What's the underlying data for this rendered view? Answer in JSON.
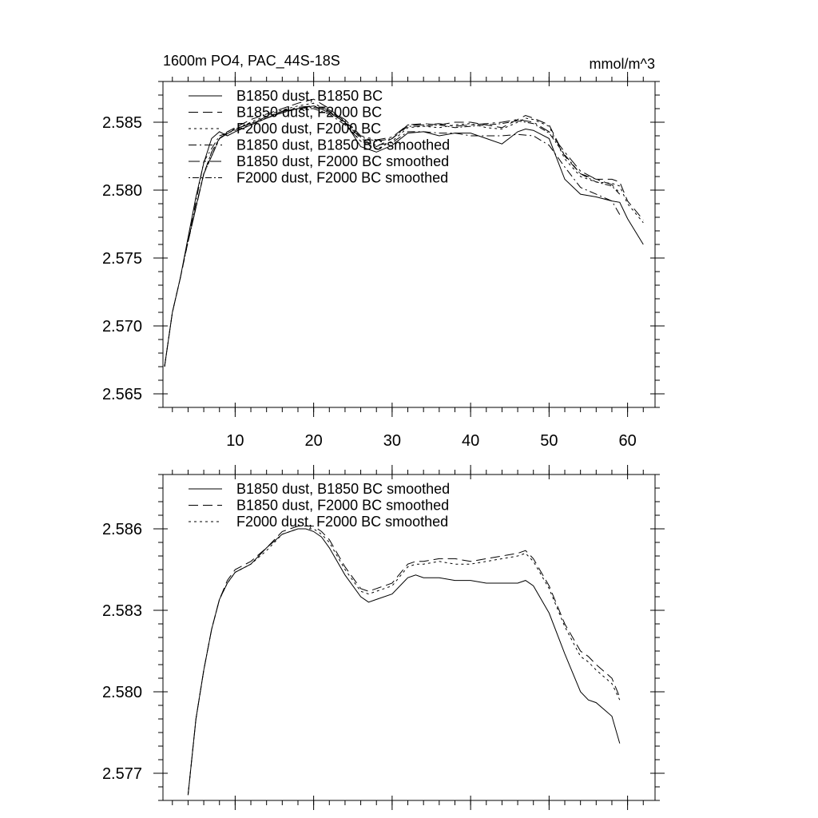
{
  "figure": {
    "title": "1600m PO4, PAC_44S-18S",
    "units": "mmol/m^3"
  },
  "chart_data": [
    {
      "type": "line",
      "title": "1600m PO4, PAC_44S-18S",
      "units_label": "mmol/m^3",
      "xlabel": "",
      "ylabel": "",
      "xlim": [
        0.8,
        63.5
      ],
      "ylim": [
        2.564,
        2.588
      ],
      "xticks": [
        10,
        20,
        30,
        40,
        50,
        60
      ],
      "yticks": [
        2.565,
        2.57,
        2.575,
        2.58,
        2.585
      ],
      "ytick_labels": [
        "2.565",
        "2.570",
        "2.575",
        "2.580",
        "2.585"
      ],
      "xtick_labels": [
        "10",
        "20",
        "30",
        "40",
        "50",
        "60"
      ],
      "grid": false,
      "legend_position": "top-left",
      "series": [
        {
          "name": "B1850 dust, B1850 BC",
          "dash": "solid",
          "x": [
            1,
            2,
            3,
            4,
            5,
            6,
            7,
            8,
            9,
            10,
            12,
            14,
            16,
            18,
            20,
            22,
            24,
            26,
            28,
            30,
            32,
            34,
            36,
            38,
            40,
            42,
            44,
            46,
            47,
            48,
            50,
            52,
            54,
            56,
            58,
            59,
            60,
            62
          ],
          "y": [
            2.567,
            2.571,
            2.5735,
            2.5765,
            2.5795,
            2.582,
            2.5838,
            2.5843,
            2.584,
            2.5843,
            2.5848,
            2.5853,
            2.5858,
            2.586,
            2.5862,
            2.5857,
            2.585,
            2.5832,
            2.5828,
            2.5833,
            2.5842,
            2.5843,
            2.584,
            2.5842,
            2.5842,
            2.5838,
            2.5834,
            2.5843,
            2.5845,
            2.5844,
            2.5838,
            2.5808,
            2.5797,
            2.5795,
            2.5792,
            2.5791,
            2.5779,
            2.576
          ]
        },
        {
          "name": "B1850 dust, F2000 BC",
          "dash": "long-dash",
          "x": [
            1,
            2,
            3,
            4,
            5,
            6,
            7,
            8,
            9,
            10,
            12,
            14,
            16,
            18,
            20,
            22,
            24,
            26,
            28,
            30,
            32,
            34,
            36,
            38,
            40,
            42,
            44,
            46,
            47,
            48,
            50,
            52,
            54,
            56,
            58,
            59,
            60,
            62
          ],
          "y": [
            2.567,
            2.571,
            2.5735,
            2.5762,
            2.5788,
            2.5812,
            2.5828,
            2.5838,
            2.5843,
            2.5846,
            2.5852,
            2.5856,
            2.586,
            2.5864,
            2.5867,
            2.586,
            2.585,
            2.5838,
            2.5832,
            2.5838,
            2.5848,
            2.5849,
            2.5848,
            2.585,
            2.585,
            2.5848,
            2.5846,
            2.5852,
            2.5855,
            2.5853,
            2.5848,
            2.5825,
            2.5812,
            2.5808,
            2.5808,
            2.5806,
            2.5792,
            2.5778
          ]
        },
        {
          "name": "F2000 dust, F2000 BC",
          "dash": "short-dash",
          "x": [
            1,
            2,
            3,
            4,
            5,
            6,
            7,
            8,
            9,
            10,
            12,
            14,
            16,
            18,
            20,
            22,
            24,
            26,
            28,
            30,
            32,
            34,
            36,
            38,
            40,
            42,
            44,
            46,
            47,
            48,
            50,
            52,
            54,
            56,
            58,
            59,
            60,
            62
          ],
          "y": [
            2.567,
            2.571,
            2.5735,
            2.5762,
            2.5788,
            2.5812,
            2.5828,
            2.5838,
            2.5843,
            2.5845,
            2.585,
            2.5855,
            2.5859,
            2.5862,
            2.5864,
            2.5858,
            2.5849,
            2.5836,
            2.583,
            2.5836,
            2.5846,
            2.5847,
            2.5846,
            2.5848,
            2.5849,
            2.5846,
            2.5845,
            2.585,
            2.5853,
            2.5852,
            2.5847,
            2.5823,
            2.581,
            2.5806,
            2.5805,
            2.5803,
            2.579,
            2.5776
          ]
        },
        {
          "name": "B1850 dust, B1850 BC smoothed",
          "dash": "dash-dot",
          "x": [
            4,
            6,
            8,
            10,
            12,
            14,
            16,
            18,
            20,
            22,
            24,
            26,
            28,
            30,
            32,
            34,
            36,
            38,
            40,
            42,
            44,
            46,
            48,
            50,
            52,
            54,
            56,
            58,
            59
          ],
          "y": [
            2.5762,
            2.5821,
            2.584,
            2.5844,
            2.5848,
            2.5853,
            2.5857,
            2.586,
            2.586,
            2.5856,
            2.5848,
            2.5836,
            2.5833,
            2.5835,
            2.5843,
            2.5843,
            2.5842,
            2.5842,
            2.584,
            2.584,
            2.584,
            2.5841,
            2.584,
            2.5833,
            2.5817,
            2.5802,
            2.5797,
            2.5792,
            2.5782
          ]
        },
        {
          "name": "B1850 dust, F2000 BC smoothed",
          "dash": "long-dash-dot",
          "x": [
            4,
            6,
            8,
            10,
            12,
            14,
            16,
            18,
            20,
            22,
            24,
            26,
            28,
            30,
            32,
            34,
            36,
            38,
            40,
            42,
            44,
            46,
            48,
            50,
            52,
            54,
            56,
            58,
            59
          ],
          "y": [
            2.5762,
            2.5812,
            2.5838,
            2.5845,
            2.5849,
            2.5854,
            2.5858,
            2.5861,
            2.5862,
            2.5859,
            2.5852,
            2.584,
            2.5837,
            2.5839,
            2.5848,
            2.5848,
            2.5849,
            2.5847,
            2.5848,
            2.5849,
            2.585,
            2.5852,
            2.585,
            2.5843,
            2.5828,
            2.5814,
            2.5808,
            2.5804,
            2.5798
          ]
        },
        {
          "name": "F2000 dust, F2000 BC smoothed",
          "dash": "dot-dash",
          "x": [
            4,
            6,
            8,
            10,
            12,
            14,
            16,
            18,
            20,
            22,
            24,
            26,
            28,
            30,
            32,
            34,
            36,
            38,
            40,
            42,
            44,
            46,
            48,
            50,
            52,
            54,
            56,
            58,
            59
          ],
          "y": [
            2.5762,
            2.5812,
            2.5838,
            2.5845,
            2.5849,
            2.5853,
            2.5857,
            2.586,
            2.5861,
            2.5858,
            2.5851,
            2.5839,
            2.5836,
            2.5838,
            2.5847,
            2.5847,
            2.5848,
            2.5846,
            2.5847,
            2.5848,
            2.5849,
            2.5851,
            2.5849,
            2.5842,
            2.5826,
            2.5812,
            2.5806,
            2.5803,
            2.5797
          ]
        }
      ]
    },
    {
      "type": "line",
      "title": "",
      "xlabel": "",
      "ylabel": "",
      "xlim": [
        0.8,
        63.5
      ],
      "ylim": [
        2.576,
        2.588
      ],
      "xticks": [
        10,
        20,
        30,
        40,
        50,
        60
      ],
      "yticks": [
        2.577,
        2.58,
        2.583,
        2.586
      ],
      "ytick_labels": [
        "2.577",
        "2.580",
        "2.583",
        "2.586"
      ],
      "xtick_labels": [],
      "grid": false,
      "legend_position": "top-left",
      "series": [
        {
          "name": "B1850 dust, B1850 BC smoothed",
          "dash": "solid",
          "x": [
            4,
            5,
            6,
            7,
            8,
            9,
            10,
            12,
            14,
            16,
            18,
            19,
            20,
            21,
            22,
            24,
            26,
            27,
            28,
            30,
            32,
            33,
            34,
            36,
            38,
            40,
            42,
            44,
            46,
            47,
            48,
            50,
            52,
            54,
            55,
            56,
            58,
            59
          ],
          "y": [
            2.5762,
            2.579,
            2.5808,
            2.5823,
            2.5834,
            2.584,
            2.5844,
            2.5847,
            2.5853,
            2.5858,
            2.586,
            2.586,
            2.5859,
            2.5857,
            2.5853,
            2.5843,
            2.5835,
            2.5833,
            2.5834,
            2.5836,
            2.5842,
            2.5843,
            2.5842,
            2.5842,
            2.5841,
            2.5841,
            2.584,
            2.584,
            2.584,
            2.5841,
            2.5839,
            2.5829,
            2.5814,
            2.58,
            2.5797,
            2.5796,
            2.5791,
            2.5781
          ]
        },
        {
          "name": "B1850 dust, F2000 BC smoothed",
          "dash": "long-dash",
          "x": [
            4,
            5,
            6,
            7,
            8,
            9,
            10,
            12,
            14,
            16,
            18,
            19,
            20,
            21,
            22,
            24,
            26,
            27,
            28,
            30,
            32,
            33,
            34,
            36,
            38,
            40,
            42,
            44,
            46,
            47,
            48,
            50,
            52,
            54,
            55,
            56,
            58,
            59
          ],
          "y": [
            2.5762,
            2.579,
            2.5808,
            2.5823,
            2.5834,
            2.5841,
            2.5845,
            2.5848,
            2.5853,
            2.5859,
            2.5861,
            2.5861,
            2.5861,
            2.5859,
            2.5856,
            2.5846,
            2.5838,
            2.5837,
            2.5838,
            2.584,
            2.5847,
            2.5848,
            2.5848,
            2.5849,
            2.5849,
            2.5848,
            2.5849,
            2.585,
            2.5851,
            2.5852,
            2.5849,
            2.5839,
            2.5825,
            2.5815,
            2.5813,
            2.581,
            2.5805,
            2.5798
          ]
        },
        {
          "name": "F2000 dust, F2000 BC smoothed",
          "dash": "short-dash",
          "x": [
            4,
            5,
            6,
            7,
            8,
            9,
            10,
            12,
            14,
            16,
            18,
            19,
            20,
            21,
            22,
            24,
            26,
            27,
            28,
            30,
            32,
            33,
            34,
            36,
            38,
            40,
            42,
            44,
            46,
            47,
            48,
            50,
            52,
            54,
            55,
            56,
            58,
            59
          ],
          "y": [
            2.5762,
            2.579,
            2.5808,
            2.5823,
            2.5834,
            2.584,
            2.5844,
            2.5847,
            2.5852,
            2.5858,
            2.586,
            2.586,
            2.586,
            2.5858,
            2.5855,
            2.5845,
            2.5837,
            2.5836,
            2.5837,
            2.5839,
            2.5846,
            2.5847,
            2.5847,
            2.5848,
            2.5847,
            2.5847,
            2.5848,
            2.5849,
            2.585,
            2.5851,
            2.5848,
            2.5838,
            2.5824,
            2.5813,
            2.5811,
            2.5808,
            2.5803,
            2.5797
          ]
        }
      ]
    }
  ]
}
